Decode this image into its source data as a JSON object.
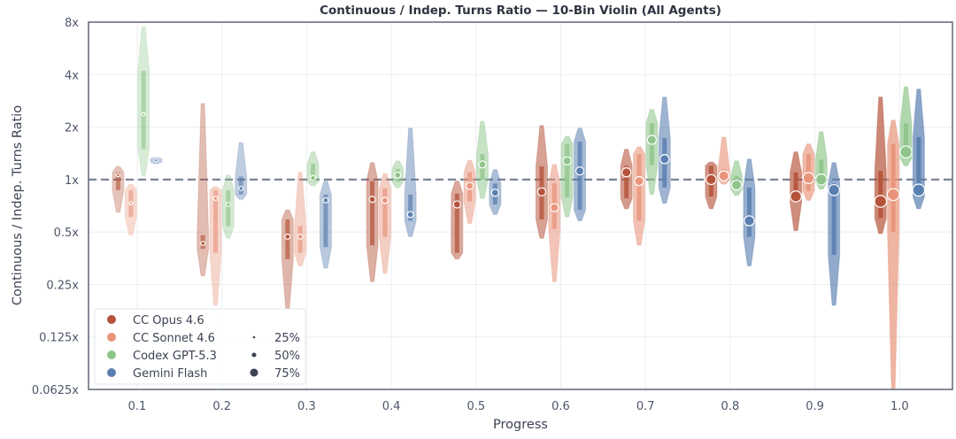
{
  "chart_data": {
    "type": "violin",
    "title": "Continuous / Indep. Turns Ratio — 10-Bin Violin (All Agents)",
    "xlabel": "Progress",
    "ylabel": "Continuous / Indep. Turns Ratio",
    "y_scale": "log2",
    "ylim": [
      0.0625,
      8
    ],
    "xlim": [
      0.04,
      1.06
    ],
    "grid": true,
    "reference_line": {
      "y": 1,
      "style": "dashed",
      "color": "#7a8494"
    },
    "y_ticks": [
      {
        "value": 8,
        "label": "8x"
      },
      {
        "value": 4,
        "label": "4x"
      },
      {
        "value": 2,
        "label": "2x"
      },
      {
        "value": 1,
        "label": "1x"
      },
      {
        "value": 0.5,
        "label": "0.5x"
      },
      {
        "value": 0.25,
        "label": "0.25x"
      },
      {
        "value": 0.125,
        "label": "0.125x"
      },
      {
        "value": 0.0625,
        "label": "0.0625x"
      }
    ],
    "x_ticks": [
      {
        "value": 0.1,
        "label": "0.1"
      },
      {
        "value": 0.2,
        "label": "0.2"
      },
      {
        "value": 0.3,
        "label": "0.3"
      },
      {
        "value": 0.4,
        "label": "0.4"
      },
      {
        "value": 0.5,
        "label": "0.5"
      },
      {
        "value": 0.6,
        "label": "0.6"
      },
      {
        "value": 0.7,
        "label": "0.7"
      },
      {
        "value": 0.8,
        "label": "0.8"
      },
      {
        "value": 0.9,
        "label": "0.9"
      },
      {
        "value": 1.0,
        "label": "1.0"
      }
    ],
    "legend_position": "bottom-left",
    "size_legend": [
      {
        "label": "25%",
        "size": 0.25
      },
      {
        "label": "50%",
        "size": 0.5
      },
      {
        "label": "75%",
        "size": 0.75
      }
    ],
    "bins": [
      0.1,
      0.2,
      0.3,
      0.4,
      0.5,
      0.6,
      0.7,
      0.8,
      0.9,
      1.0
    ],
    "series": [
      {
        "name": "CC Opus 4.6",
        "color": "#b5543a",
        "violins": [
          {
            "min": 0.65,
            "q1": 0.87,
            "median": 1.06,
            "q3": 1.1,
            "max": 1.19
          },
          {
            "min": 0.28,
            "q1": 0.4,
            "median": 0.43,
            "q3": 0.48,
            "max": 2.73
          },
          {
            "min": 0.18,
            "q1": 0.35,
            "median": 0.47,
            "q3": 0.59,
            "max": 0.67
          },
          {
            "min": 0.26,
            "q1": 0.42,
            "median": 0.77,
            "q3": 0.98,
            "max": 1.25
          },
          {
            "min": 0.35,
            "q1": 0.38,
            "median": 0.72,
            "q3": 0.83,
            "max": 0.98
          },
          {
            "min": 0.46,
            "q1": 0.59,
            "median": 0.85,
            "q3": 1.19,
            "max": 2.04
          },
          {
            "min": 0.68,
            "q1": 0.78,
            "median": 1.1,
            "q3": 1.2,
            "max": 1.49
          },
          {
            "min": 0.68,
            "q1": 0.8,
            "median": 1.0,
            "q3": 1.2,
            "max": 1.26
          },
          {
            "min": 0.51,
            "q1": 0.74,
            "median": 0.8,
            "q3": 1.1,
            "max": 1.44
          },
          {
            "min": 0.49,
            "q1": 0.6,
            "median": 0.75,
            "q3": 1.12,
            "max": 2.97
          }
        ]
      },
      {
        "name": "CC Sonnet 4.6",
        "color": "#e8957c",
        "violins": [
          {
            "min": 0.48,
            "q1": 0.61,
            "median": 0.73,
            "q3": 0.87,
            "max": 0.94
          },
          {
            "min": 0.19,
            "q1": 0.38,
            "median": 0.78,
            "q3": 0.87,
            "max": 0.91
          },
          {
            "min": 0.32,
            "q1": 0.38,
            "median": 0.47,
            "q3": 0.54,
            "max": 1.1
          },
          {
            "min": 0.29,
            "q1": 0.47,
            "median": 0.76,
            "q3": 0.89,
            "max": 1.08
          },
          {
            "min": 0.56,
            "q1": 0.75,
            "median": 0.92,
            "q3": 1.1,
            "max": 1.29
          },
          {
            "min": 0.26,
            "q1": 0.52,
            "median": 0.69,
            "q3": 0.95,
            "max": 1.22
          },
          {
            "min": 0.42,
            "q1": 0.58,
            "median": 0.98,
            "q3": 1.4,
            "max": 1.54
          },
          {
            "min": 0.94,
            "q1": 1.0,
            "median": 1.05,
            "q3": 1.15,
            "max": 1.75
          },
          {
            "min": 0.76,
            "q1": 0.86,
            "median": 1.02,
            "q3": 1.4,
            "max": 1.6
          },
          {
            "min": 0.0625,
            "q1": 0.5,
            "median": 0.82,
            "q3": 1.6,
            "max": 2.19
          }
        ]
      },
      {
        "name": "Codex GPT-5.3",
        "color": "#8fc58a",
        "violins": [
          {
            "min": 1.05,
            "q1": 1.5,
            "median": 2.37,
            "q3": 4.2,
            "max": 7.5
          },
          {
            "min": 0.46,
            "q1": 0.54,
            "median": 0.72,
            "q3": 0.87,
            "max": 1.06
          },
          {
            "min": 0.92,
            "q1": 0.97,
            "median": 1.02,
            "q3": 1.23,
            "max": 1.44
          },
          {
            "min": 0.9,
            "q1": 0.97,
            "median": 1.06,
            "q3": 1.15,
            "max": 1.28
          },
          {
            "min": 0.78,
            "q1": 1.0,
            "median": 1.22,
            "q3": 1.4,
            "max": 2.16
          },
          {
            "min": 0.61,
            "q1": 0.79,
            "median": 1.28,
            "q3": 1.6,
            "max": 1.77
          },
          {
            "min": 0.82,
            "q1": 1.21,
            "median": 1.69,
            "q3": 2.1,
            "max": 2.52
          },
          {
            "min": 0.81,
            "q1": 0.88,
            "median": 0.93,
            "q3": 1.05,
            "max": 1.28
          },
          {
            "min": 0.88,
            "q1": 0.97,
            "median": 1.0,
            "q3": 1.3,
            "max": 1.88
          },
          {
            "min": 1.2,
            "q1": 1.33,
            "median": 1.44,
            "q3": 2.1,
            "max": 3.4
          }
        ]
      },
      {
        "name": "Gemini Flash",
        "color": "#5a7fb0",
        "violins": [
          {
            "min": 1.23,
            "q1": 1.26,
            "median": 1.29,
            "q3": 1.32,
            "max": 1.34
          },
          {
            "min": 0.77,
            "q1": 0.82,
            "median": 0.89,
            "q3": 1.04,
            "max": 1.63
          },
          {
            "min": 0.31,
            "q1": 0.41,
            "median": 0.76,
            "q3": 0.82,
            "max": 0.98
          },
          {
            "min": 0.47,
            "q1": 0.58,
            "median": 0.63,
            "q3": 0.82,
            "max": 1.97
          },
          {
            "min": 0.63,
            "q1": 0.72,
            "median": 0.84,
            "q3": 0.95,
            "max": 1.14
          },
          {
            "min": 0.58,
            "q1": 0.67,
            "median": 1.12,
            "q3": 1.65,
            "max": 1.97
          },
          {
            "min": 0.73,
            "q1": 0.9,
            "median": 1.31,
            "q3": 1.73,
            "max": 2.97
          },
          {
            "min": 0.32,
            "q1": 0.47,
            "median": 0.58,
            "q3": 0.9,
            "max": 1.31
          },
          {
            "min": 0.19,
            "q1": 0.37,
            "median": 0.87,
            "q3": 0.95,
            "max": 1.25
          },
          {
            "min": 0.68,
            "q1": 0.8,
            "median": 0.87,
            "q3": 1.75,
            "max": 3.3
          }
        ]
      }
    ]
  }
}
